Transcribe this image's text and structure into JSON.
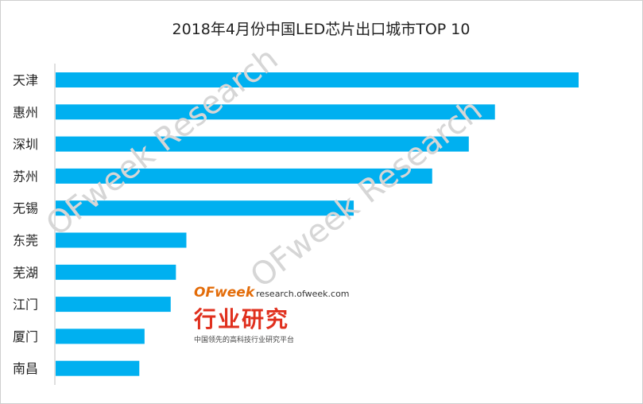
{
  "chart_data": {
    "type": "bar",
    "orientation": "horizontal",
    "title": "2018年4月份中国LED芯片出口城市TOP 10",
    "categories": [
      "天津",
      "惠州",
      "深圳",
      "苏州",
      "无锡",
      "东莞",
      "芜湖",
      "江门",
      "厦门",
      "南昌"
    ],
    "values": [
      100,
      84,
      79,
      72,
      57,
      25,
      23,
      22,
      17,
      16
    ],
    "xlim": [
      0,
      100
    ],
    "grid": false,
    "legend": "none",
    "bar_color": "#00b0f0"
  },
  "watermark": {
    "text_1": "OFweek Research",
    "text_2": "OFweek Research"
  },
  "logo": {
    "brand": "OFweek",
    "url": "research.ofweek.com",
    "name_cn": "行业研究",
    "tagline": "中国领先的高科技行业研究平台"
  }
}
